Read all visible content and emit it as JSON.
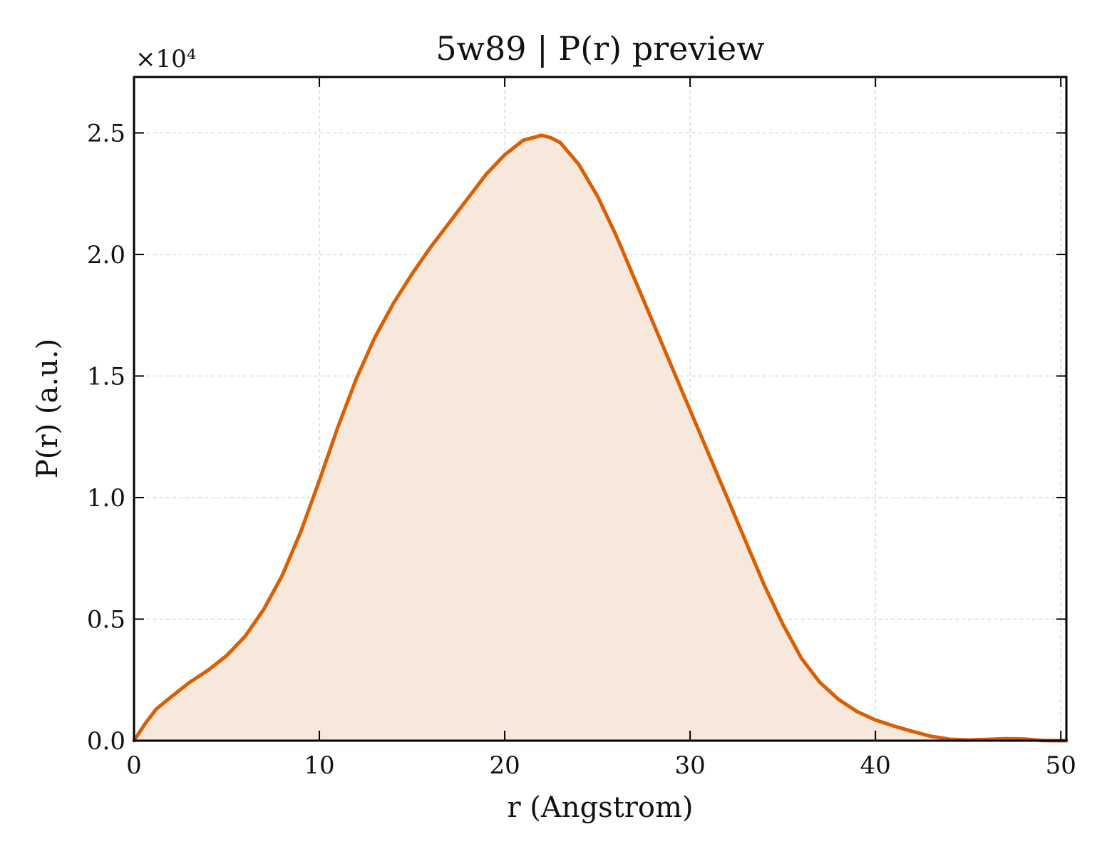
{
  "chart_data": {
    "type": "area",
    "title": "5w89 | P(r) preview",
    "xlabel": "r (Angstrom)",
    "ylabel": "P(r) (a.u.)",
    "y_multiplier_label": "×10⁴",
    "xlim": [
      0,
      50.3
    ],
    "ylim": [
      0,
      27300
    ],
    "xticks": [
      0,
      10,
      20,
      30,
      40,
      50
    ],
    "xtick_labels": [
      "0",
      "10",
      "20",
      "30",
      "40",
      "50"
    ],
    "yticks": [
      0,
      5000,
      10000,
      15000,
      20000,
      25000
    ],
    "ytick_labels": [
      "0.0",
      "0.5",
      "1.0",
      "1.5",
      "2.0",
      "2.5"
    ],
    "grid": true,
    "line_color": "#d95f02",
    "fill_color": "#f8e8dc",
    "series": [
      {
        "x": [
          0,
          0.6,
          1.2,
          2,
          3,
          4,
          5,
          6,
          7,
          8,
          9,
          10,
          11,
          12,
          13,
          14,
          15,
          16,
          17,
          18,
          19,
          20,
          21,
          22,
          22.5,
          23,
          24,
          25,
          26,
          27,
          28,
          29,
          30,
          31,
          32,
          33,
          34,
          35,
          36,
          37,
          38,
          39,
          40,
          41,
          42,
          43,
          44,
          45,
          46,
          47,
          48,
          49,
          49.6,
          50.3
        ],
        "y": [
          0,
          700,
          1300,
          1800,
          2400,
          2900,
          3500,
          4300,
          5400,
          6800,
          8600,
          10700,
          12900,
          14900,
          16600,
          18000,
          19200,
          20300,
          21300,
          22300,
          23300,
          24100,
          24700,
          24900,
          24800,
          24600,
          23700,
          22400,
          20800,
          19000,
          17200,
          15400,
          13600,
          11800,
          10000,
          8200,
          6400,
          4800,
          3400,
          2400,
          1700,
          1200,
          850,
          600,
          380,
          180,
          60,
          30,
          50,
          80,
          70,
          10,
          0,
          0
        ]
      }
    ]
  }
}
